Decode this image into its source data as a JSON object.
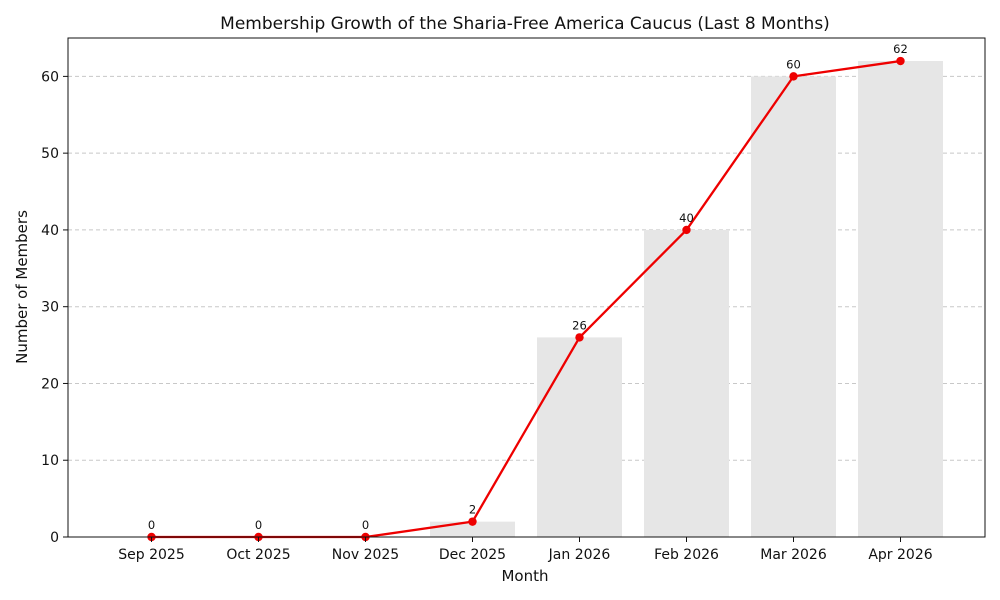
{
  "chart_data": {
    "type": "bar+line",
    "title": "Membership Growth of the Sharia-Free America Caucus (Last 8 Months)",
    "xlabel": "Month",
    "ylabel": "Number of Members",
    "categories": [
      "Sep 2025",
      "Oct 2025",
      "Nov 2025",
      "Dec 2025",
      "Jan 2026",
      "Feb 2026",
      "Mar 2026",
      "Apr 2026"
    ],
    "values": [
      0,
      0,
      0,
      2,
      26,
      40,
      60,
      62
    ],
    "data_labels": [
      "0",
      "0",
      "0",
      "2",
      "26",
      "40",
      "60",
      "62"
    ],
    "ylim": [
      0,
      65
    ],
    "yticks": [
      0,
      10,
      20,
      30,
      40,
      50,
      60
    ],
    "ytick_labels": [
      "0",
      "10",
      "20",
      "30",
      "40",
      "50",
      "60"
    ],
    "grid": "y dashed",
    "colors": {
      "bar": "#e6e6e6",
      "line": "#ee0000",
      "marker": "#ee0000",
      "grid": "#c8c8c8",
      "axis": "#111111"
    }
  }
}
